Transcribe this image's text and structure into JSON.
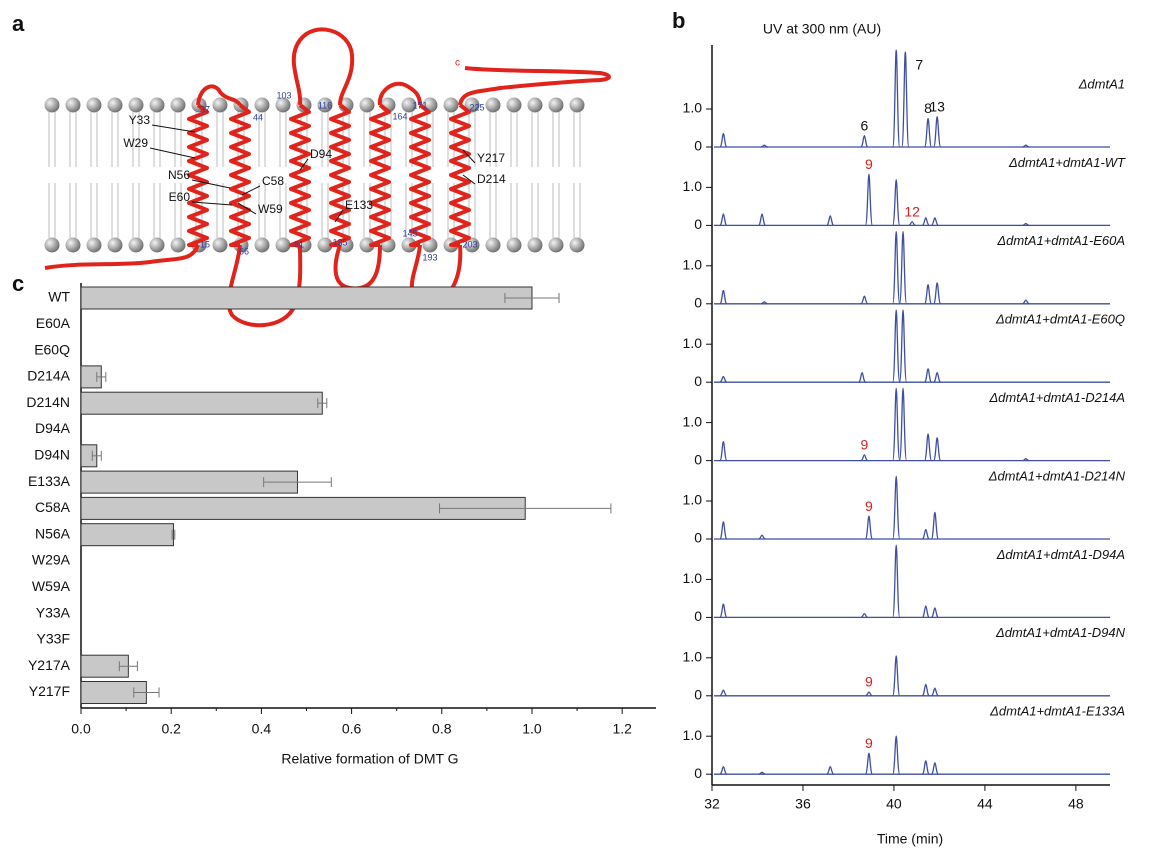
{
  "panel_labels": [
    "a",
    "b",
    "c"
  ],
  "topology": {
    "terminus": "c",
    "residue_numbers": [
      "37",
      "44",
      "103",
      "116",
      "171",
      "164",
      "225",
      "15",
      "66",
      "81",
      "135",
      "145",
      "193",
      "203"
    ],
    "residues": [
      "Y33",
      "W29",
      "N56",
      "C58",
      "E60",
      "W59",
      "D94",
      "E133",
      "Y217",
      "D214"
    ]
  },
  "chart_data": [
    {
      "type": "chromatogram",
      "title": "UV at 300 nm (AU)",
      "x_label": "Time (min)",
      "xlim": [
        32,
        49.5
      ],
      "xticks": [
        32,
        36,
        40,
        44,
        48
      ],
      "ylim": [
        -0.1,
        1.45
      ],
      "yticks": [
        0,
        {
          "value": 1,
          "label": "1.0"
        }
      ],
      "color": "#3f4f9e",
      "series": [
        {
          "name": "ΔdmtA1",
          "peak_label_color": "#111111",
          "times": [
            32.5,
            34.3,
            38.7,
            40.1,
            40.5,
            41.5,
            41.9,
            45.8
          ],
          "values": [
            0.35,
            0.05,
            0.3,
            2.55,
            2.5,
            0.75,
            0.8,
            0.05
          ],
          "peak_labels": [
            null,
            null,
            "6",
            null,
            "7",
            "8",
            "13",
            null
          ]
        },
        {
          "name": "ΔdmtA1+dmtA1-WT",
          "peak_label_color": "#d42020",
          "times": [
            32.5,
            34.2,
            37.2,
            38.9,
            40.1,
            40.8,
            41.4,
            41.8,
            45.8
          ],
          "values": [
            0.3,
            0.3,
            0.25,
            1.35,
            1.2,
            0.1,
            0.2,
            0.2,
            0.05
          ],
          "peak_labels": [
            null,
            null,
            null,
            "9",
            null,
            "12",
            null,
            null,
            null
          ]
        },
        {
          "name": "ΔdmtA1+dmtA1-E60A",
          "times": [
            32.5,
            34.3,
            38.7,
            40.1,
            40.4,
            41.5,
            41.9,
            45.8
          ],
          "values": [
            0.35,
            0.05,
            0.2,
            1.9,
            1.9,
            0.5,
            0.55,
            0.1
          ]
        },
        {
          "name": "ΔdmtA1+dmtA1-E60Q",
          "times": [
            32.5,
            38.6,
            40.1,
            40.4,
            41.5,
            41.9
          ],
          "values": [
            0.15,
            0.25,
            1.9,
            1.9,
            0.35,
            0.25
          ]
        },
        {
          "name": "ΔdmtA1+dmtA1-D214A",
          "peak_label_color": "#d42020",
          "times": [
            32.5,
            38.7,
            40.1,
            40.4,
            41.5,
            41.9,
            45.8
          ],
          "values": [
            0.5,
            0.15,
            1.9,
            1.9,
            0.7,
            0.6,
            0.05
          ],
          "peak_labels": [
            null,
            "9",
            null,
            null,
            null,
            null,
            null
          ]
        },
        {
          "name": "ΔdmtA1+dmtA1-D214N",
          "peak_label_color": "#d42020",
          "times": [
            32.5,
            34.2,
            38.9,
            40.1,
            41.4,
            41.8
          ],
          "values": [
            0.45,
            0.1,
            0.6,
            1.65,
            0.25,
            0.7
          ],
          "peak_labels": [
            null,
            null,
            "9",
            null,
            null,
            null
          ]
        },
        {
          "name": "ΔdmtA1+dmtA1-D94A",
          "times": [
            32.5,
            38.7,
            40.1,
            41.4,
            41.8
          ],
          "values": [
            0.35,
            0.1,
            1.9,
            0.3,
            0.25
          ]
        },
        {
          "name": "ΔdmtA1+dmtA1-D94N",
          "peak_label_color": "#d42020",
          "times": [
            32.5,
            38.9,
            40.1,
            41.4,
            41.8
          ],
          "values": [
            0.15,
            0.1,
            1.05,
            0.3,
            0.2
          ],
          "peak_labels": [
            null,
            "9",
            null,
            null,
            null
          ]
        },
        {
          "name": "ΔdmtA1+dmtA1-E133A",
          "peak_label_color": "#d42020",
          "times": [
            32.5,
            34.2,
            37.2,
            38.9,
            40.1,
            41.4,
            41.8
          ],
          "values": [
            0.2,
            0.05,
            0.2,
            0.55,
            1.0,
            0.35,
            0.3
          ],
          "peak_labels": [
            null,
            null,
            null,
            "9",
            null,
            null,
            null
          ]
        }
      ]
    },
    {
      "type": "hbar",
      "x_label": "Relative formation of DMT G",
      "categories": [
        "WT",
        "E60A",
        "E60Q",
        "D214A",
        "D214N",
        "D94A",
        "D94N",
        "E133A",
        "C58A",
        "N56A",
        "W29A",
        "W59A",
        "Y33A",
        "Y33F",
        "Y217A",
        "Y217F"
      ],
      "values": [
        1.0,
        0,
        0,
        0.045,
        0.535,
        0,
        0.035,
        0.48,
        0.985,
        0.205,
        0,
        0,
        0,
        0,
        0.105,
        0.145
      ],
      "errors": [
        0.06,
        0,
        0,
        0.01,
        0.01,
        0,
        0.01,
        0.075,
        0.19,
        0.003,
        0,
        0,
        0,
        0,
        0.02,
        0.028
      ],
      "color": "#c8c8c8",
      "xlim": [
        0,
        1.275
      ],
      "xticks": [
        {
          "value": 0,
          "label": "0.0"
        },
        0.2,
        0.4,
        0.6,
        0.8,
        {
          "value": 1,
          "label": "1.0"
        },
        1.2
      ]
    }
  ]
}
